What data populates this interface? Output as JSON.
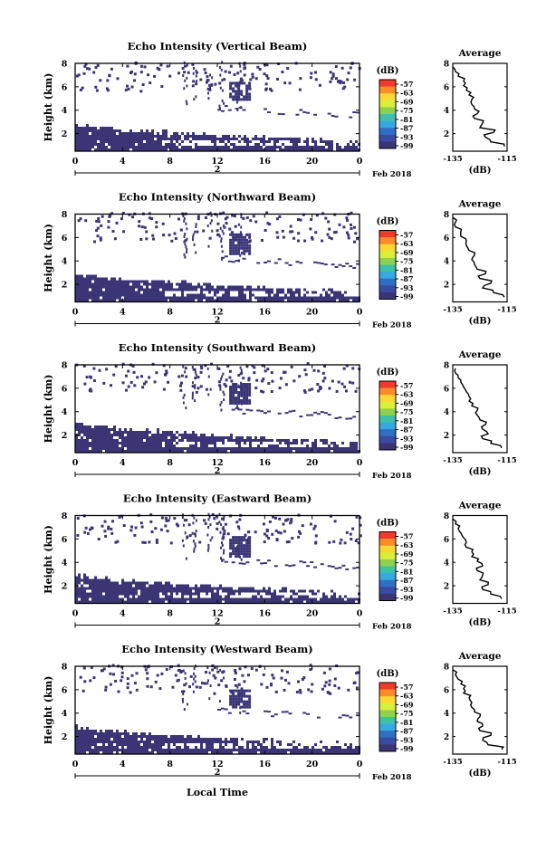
{
  "figure": {
    "footer_xlabel": "Local Time",
    "colorbar_unit": "(dB)",
    "colorbar_ticks": [
      "-57",
      "-63",
      "-69",
      "-75",
      "-81",
      "-87",
      "-93",
      "-99"
    ],
    "colorscale": [
      "#ef3b2c",
      "#fb8c2a",
      "#fdd835",
      "#d9ef3a",
      "#8fd14f",
      "#3fc1a8",
      "#36a9e1",
      "#2f6fc4",
      "#3a4ba3",
      "#3b3575"
    ],
    "echo_color": "#3b3575",
    "date_label": "Feb 2018",
    "date_day": "2",
    "time_ticks": [
      "0",
      "4",
      "8",
      "12",
      "16",
      "20",
      "0"
    ],
    "height_ticks": [
      "8",
      "6",
      "4",
      "2"
    ],
    "height_label": "Height (km)",
    "avg_title": "Average",
    "avg_ticks": [
      "-135",
      "-115"
    ],
    "avg_unit": "(dB)"
  },
  "chart_data": [
    {
      "type": "heatmap",
      "title": "Echo Intensity (Vertical Beam)",
      "ylabel": "Height (km)",
      "xticks": [
        "0",
        "4",
        "8",
        "12",
        "16",
        "20",
        "0"
      ],
      "ylim": [
        0.5,
        8
      ],
      "zlim": [
        -99,
        -57
      ],
      "echo_layers": [
        {
          "description_free": true,
          "t_start": 0,
          "t_end": 24,
          "h_top_start": 2.6,
          "h_top_end": 1.2,
          "h_bottom": 0.6
        },
        {
          "t_start": 13.0,
          "t_end": 14.7,
          "h_bottom": 4.8,
          "h_top": 6.4
        }
      ],
      "average_profile": {
        "title": "Average",
        "xlabel": "(dB)",
        "xlim": [
          -135,
          -115
        ],
        "ylim": [
          0.5,
          8
        ],
        "height": [
          0.9,
          1.3,
          1.7,
          2.1,
          2.5,
          2.9,
          3.3,
          3.7,
          4.1,
          4.5,
          4.9,
          5.3,
          5.7,
          6.1,
          6.5,
          6.9,
          7.3,
          7.7
        ],
        "value": [
          -116,
          -121,
          -123,
          -120,
          -125,
          -124,
          -127,
          -126,
          -127,
          -128,
          -128,
          -129,
          -130,
          -131,
          -131,
          -133,
          -134,
          -135
        ]
      }
    },
    {
      "type": "heatmap",
      "title": "Echo Intensity (Northward Beam)",
      "ylabel": "Height (km)",
      "xticks": [
        "0",
        "4",
        "8",
        "12",
        "16",
        "20",
        "0"
      ],
      "ylim": [
        0.5,
        8
      ],
      "zlim": [
        -99,
        -57
      ],
      "echo_layers": [
        {
          "t_start": 0,
          "t_end": 24,
          "h_top_start": 2.8,
          "h_top_end": 1.2,
          "h_bottom": 0.6
        },
        {
          "t_start": 13.0,
          "t_end": 14.7,
          "h_bottom": 4.5,
          "h_top": 6.2
        }
      ],
      "average_profile": {
        "title": "Average",
        "xlabel": "(dB)",
        "xlim": [
          -135,
          -115
        ],
        "ylim": [
          0.5,
          8
        ],
        "height": [
          0.9,
          1.3,
          1.7,
          2.1,
          2.5,
          2.9,
          3.3,
          3.7,
          4.1,
          4.5,
          4.9,
          5.3,
          5.7,
          6.1,
          6.5,
          6.9,
          7.3,
          7.7
        ],
        "value": [
          -116,
          -120,
          -124,
          -121,
          -125,
          -123,
          -126,
          -127,
          -128,
          -127,
          -129,
          -130,
          -130,
          -132,
          -132,
          -134,
          -134,
          -135
        ]
      }
    },
    {
      "type": "heatmap",
      "title": "Echo Intensity (Southward Beam)",
      "ylabel": "Height (km)",
      "xticks": [
        "0",
        "4",
        "8",
        "12",
        "16",
        "20",
        "0"
      ],
      "ylim": [
        0.5,
        8
      ],
      "zlim": [
        -99,
        -57
      ],
      "echo_layers": [
        {
          "t_start": 0,
          "t_end": 24,
          "h_top_start": 2.9,
          "h_top_end": 1.2,
          "h_bottom": 0.6
        },
        {
          "t_start": 13.0,
          "t_end": 14.7,
          "h_bottom": 4.6,
          "h_top": 6.3
        }
      ],
      "average_profile": {
        "title": "Average",
        "xlabel": "(dB)",
        "xlim": [
          -135,
          -115
        ],
        "ylim": [
          0.5,
          8
        ],
        "height": [
          0.9,
          1.3,
          1.7,
          2.1,
          2.5,
          2.9,
          3.3,
          3.7,
          4.1,
          4.5,
          4.9,
          5.3,
          5.7,
          6.1,
          6.5,
          6.9,
          7.3,
          7.7
        ],
        "value": [
          -117,
          -121,
          -124,
          -122,
          -124,
          -123,
          -125,
          -126,
          -126,
          -128,
          -129,
          -129,
          -130,
          -131,
          -132,
          -133,
          -134,
          -134
        ]
      }
    },
    {
      "type": "heatmap",
      "title": "Echo Intensity (Eastward Beam)",
      "ylabel": "Height (km)",
      "xticks": [
        "0",
        "4",
        "8",
        "12",
        "16",
        "20",
        "0"
      ],
      "ylim": [
        0.5,
        8
      ],
      "zlim": [
        -99,
        -57
      ],
      "echo_layers": [
        {
          "t_start": 0,
          "t_end": 24,
          "h_top_start": 2.8,
          "h_top_end": 1.2,
          "h_bottom": 0.6
        },
        {
          "t_start": 13.0,
          "t_end": 14.7,
          "h_bottom": 4.4,
          "h_top": 6.1
        }
      ],
      "average_profile": {
        "title": "Average",
        "xlabel": "(dB)",
        "xlim": [
          -135,
          -115
        ],
        "ylim": [
          0.5,
          8
        ],
        "height": [
          0.9,
          1.3,
          1.7,
          2.1,
          2.5,
          2.9,
          3.3,
          3.7,
          4.1,
          4.5,
          4.9,
          5.3,
          5.7,
          6.1,
          6.5,
          6.9,
          7.3,
          7.7
        ],
        "value": [
          -117,
          -121,
          -124,
          -122,
          -125,
          -124,
          -126,
          -124,
          -126,
          -128,
          -128,
          -130,
          -130,
          -131,
          -132,
          -133,
          -134,
          -135
        ]
      }
    },
    {
      "type": "heatmap",
      "title": "Echo Intensity (Westward Beam)",
      "ylabel": "Height (km)",
      "xticks": [
        "0",
        "4",
        "8",
        "12",
        "16",
        "20",
        "0"
      ],
      "ylim": [
        0.5,
        8
      ],
      "zlim": [
        -99,
        -57
      ],
      "echo_layers": [
        {
          "t_start": 0,
          "t_end": 24,
          "h_top_start": 2.7,
          "h_top_end": 1.2,
          "h_bottom": 0.6
        },
        {
          "t_start": 13.0,
          "t_end": 14.7,
          "h_bottom": 4.4,
          "h_top": 6.0
        }
      ],
      "average_profile": {
        "title": "Average",
        "xlabel": "(dB)",
        "xlim": [
          -135,
          -115
        ],
        "ylim": [
          0.5,
          8
        ],
        "height": [
          0.9,
          1.3,
          1.7,
          2.1,
          2.5,
          2.9,
          3.3,
          3.7,
          4.1,
          4.5,
          4.9,
          5.3,
          5.7,
          6.1,
          6.5,
          6.9,
          7.3,
          7.7
        ],
        "value": [
          -117,
          -122,
          -124,
          -121,
          -125,
          -124,
          -126,
          -125,
          -127,
          -128,
          -128,
          -129,
          -131,
          -131,
          -132,
          -133,
          -134,
          -135
        ]
      }
    }
  ]
}
